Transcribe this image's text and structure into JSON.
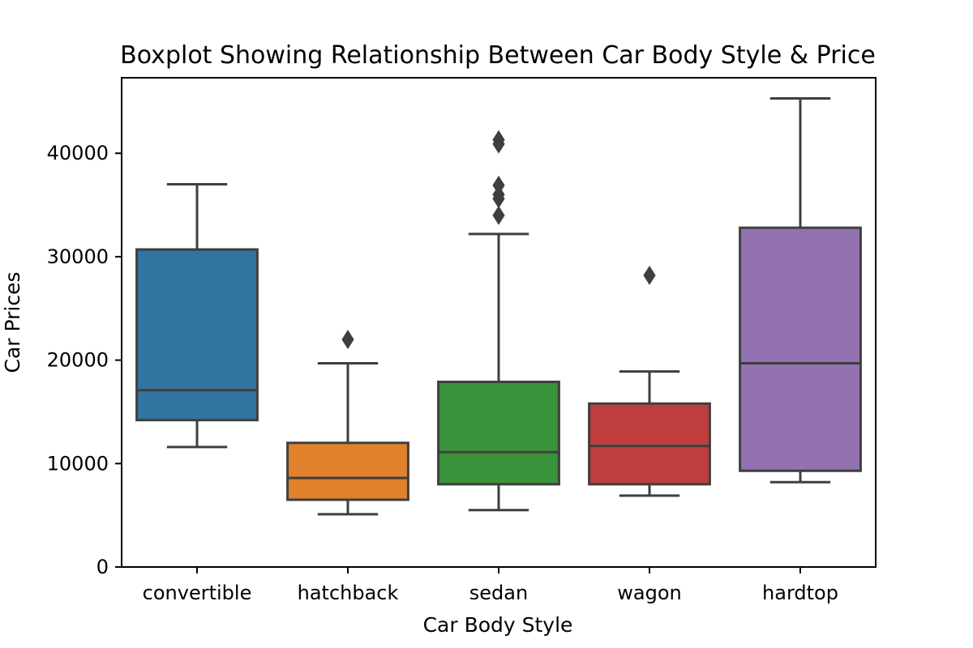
{
  "chart_data": {
    "type": "boxplot",
    "title": "Boxplot Showing Relationship Between Car Body Style & Price",
    "xlabel": "Car Body Style",
    "ylabel": "Car Prices",
    "ylim": [
      0,
      47300
    ],
    "yticks": [
      0,
      10000,
      20000,
      30000,
      40000
    ],
    "grid": false,
    "line_color": "#3f3f3f",
    "categories": [
      "convertible",
      "hatchback",
      "sedan",
      "wagon",
      "hardtop"
    ],
    "boxes": [
      {
        "category": "convertible",
        "color": "#3274a1",
        "whisker_low": 11600,
        "q1": 14200,
        "median": 17100,
        "q3": 30700,
        "whisker_high": 37000,
        "outliers": []
      },
      {
        "category": "hatchback",
        "color": "#e1812c",
        "whisker_low": 5100,
        "q1": 6500,
        "median": 8600,
        "q3": 12000,
        "whisker_high": 19700,
        "outliers": [
          22000
        ]
      },
      {
        "category": "sedan",
        "color": "#3a923a",
        "whisker_low": 5500,
        "q1": 8000,
        "median": 11100,
        "q3": 17900,
        "whisker_high": 32200,
        "outliers": [
          34000,
          35600,
          36000,
          36900,
          40900,
          41300
        ]
      },
      {
        "category": "wagon",
        "color": "#c03d3e",
        "whisker_low": 6900,
        "q1": 8000,
        "median": 11700,
        "q3": 15800,
        "whisker_high": 18900,
        "outliers": [
          28200
        ]
      },
      {
        "category": "hardtop",
        "color": "#9372b2",
        "whisker_low": 8200,
        "q1": 9300,
        "median": 19700,
        "q3": 32800,
        "whisker_high": 45300,
        "outliers": []
      }
    ]
  }
}
